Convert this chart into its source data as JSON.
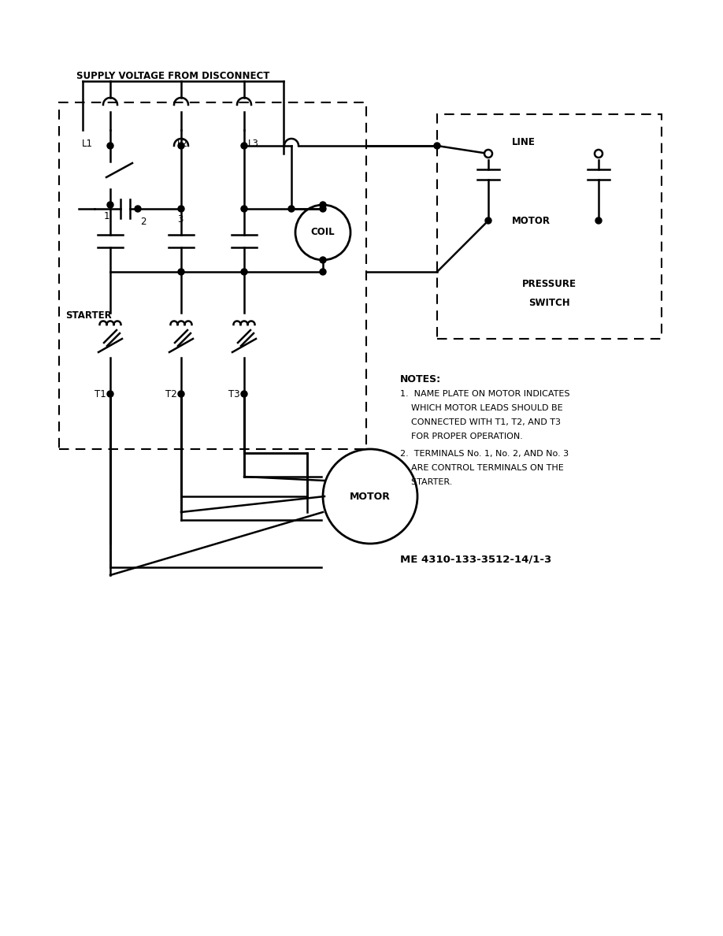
{
  "supply_voltage_label": "SUPPLY VOLTAGE FROM DISCONNECT",
  "starter_label": "STARTER",
  "coil_label": "COIL",
  "motor_label_bottom": "MOTOR",
  "pressure_switch_label_line1": "PRESSURE",
  "pressure_switch_label_line2": "SWITCH",
  "line_label": "LINE",
  "motor_label_ps": "MOTOR",
  "notes_title": "NOTES:",
  "note1_line1": "1.  NAME PLATE ON MOTOR INDICATES",
  "note1_line2": "    WHICH MOTOR LEADS SHOULD BE",
  "note1_line3": "    CONNECTED WITH T1, T2, AND T3",
  "note1_line4": "    FOR PROPER OPERATION.",
  "note2_line1": "2.  TERMINALS No. 1, No. 2, AND No. 3",
  "note2_line2": "    ARE CONTROL TERMINALS ON THE",
  "note2_line3": "    STARTER.",
  "doc_ref": "ME 4310-133-3512-14/1-3",
  "bg_color": "#ffffff"
}
